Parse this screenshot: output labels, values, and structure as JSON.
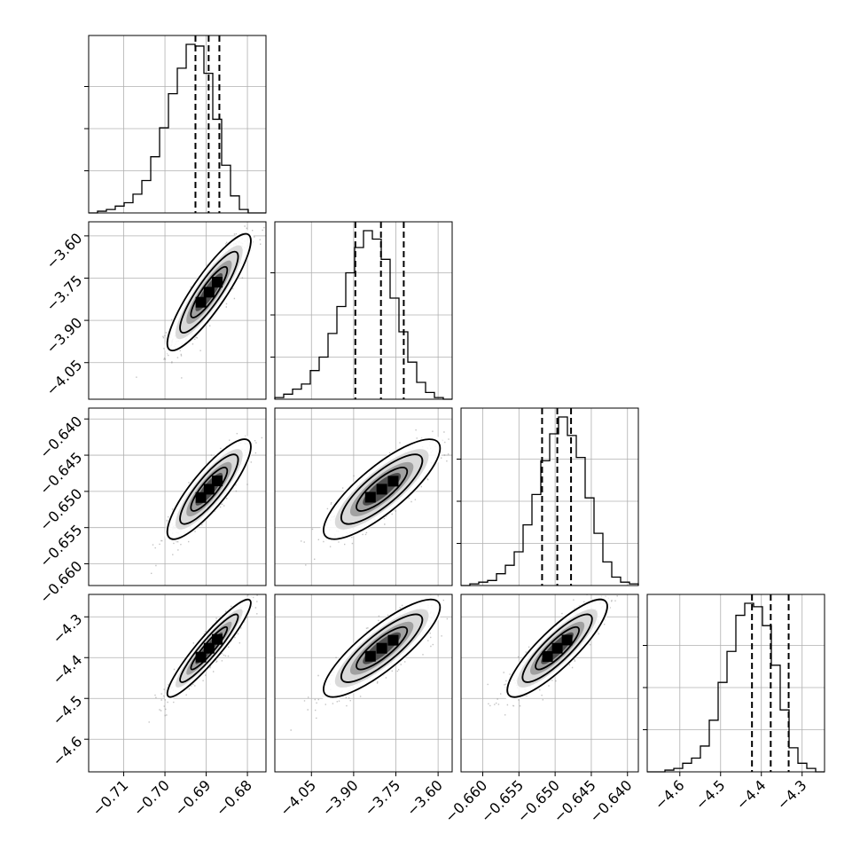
{
  "chart_data": {
    "type": "corner",
    "grid": true,
    "quantile_lines": "dashed",
    "variables": [
      {
        "range": [
          -0.7185,
          -0.6755
        ],
        "ticks": [
          -0.71,
          -0.7,
          -0.69,
          -0.68
        ],
        "tick_labels": [
          "−0.71",
          "−0.70",
          "−0.69",
          "−0.68"
        ],
        "quantiles": [
          -0.6926,
          -0.6894,
          -0.6868
        ],
        "hist": [
          0,
          1,
          2,
          4,
          6,
          11,
          19,
          33,
          50,
          70,
          85,
          99,
          98,
          82,
          55,
          28,
          10,
          2,
          0,
          0
        ]
      },
      {
        "range": [
          -4.18,
          -3.55
        ],
        "ticks": [
          -4.05,
          -3.9,
          -3.75,
          -3.6
        ],
        "tick_labels": [
          "−4.05",
          "−3.90",
          "−3.75",
          "−3.60"
        ],
        "quantiles": [
          -3.894,
          -3.803,
          -3.722
        ],
        "hist": [
          1,
          3,
          6,
          9,
          17,
          25,
          39,
          55,
          75,
          90,
          100,
          95,
          83,
          60,
          40,
          22,
          10,
          4,
          1,
          0
        ]
      },
      {
        "range": [
          -0.663,
          -0.6385
        ],
        "ticks": [
          -0.66,
          -0.655,
          -0.65,
          -0.645,
          -0.64
        ],
        "tick_labels": [
          "−0.660",
          "−0.655",
          "−0.650",
          "−0.645",
          "−0.640"
        ],
        "quantiles": [
          -0.6518,
          -0.6497,
          -0.6478
        ],
        "hist": [
          0,
          1,
          2,
          3,
          7,
          12,
          20,
          36,
          54,
          74,
          90,
          100,
          89,
          76,
          52,
          31,
          14,
          5,
          2,
          1
        ]
      },
      {
        "range": [
          -4.68,
          -4.245
        ],
        "ticks": [
          -4.6,
          -4.5,
          -4.4,
          -4.3
        ],
        "tick_labels": [
          "−4.6",
          "−4.5",
          "−4.4",
          "−4.3"
        ],
        "quantiles": [
          -4.423,
          -4.377,
          -4.333
        ],
        "hist": [
          0,
          0,
          1,
          2,
          5,
          8,
          15,
          30,
          52,
          70,
          91,
          98,
          96,
          85,
          62,
          36,
          14,
          5,
          2,
          0
        ]
      }
    ],
    "pairs": [
      {
        "x": 0,
        "y": 1,
        "center": [
          -0.6893,
          -3.8
        ],
        "sd": [
          0.0044,
          0.09
        ],
        "rho": 0.88
      },
      {
        "x": 0,
        "y": 2,
        "center": [
          -0.6893,
          -0.6497
        ],
        "sd": [
          0.0044,
          0.003
        ],
        "rho": 0.85
      },
      {
        "x": 1,
        "y": 2,
        "center": [
          -3.8,
          -0.6497
        ],
        "sd": [
          0.09,
          0.003
        ],
        "rho": 0.82
      },
      {
        "x": 0,
        "y": 3,
        "center": [
          -0.6893,
          -4.377
        ],
        "sd": [
          0.0044,
          0.052
        ],
        "rho": 0.93
      },
      {
        "x": 1,
        "y": 3,
        "center": [
          -3.8,
          -4.377
        ],
        "sd": [
          0.09,
          0.052
        ],
        "rho": 0.84
      },
      {
        "x": 2,
        "y": 3,
        "center": [
          -0.6497,
          -4.377
        ],
        "sd": [
          0.003,
          0.052
        ],
        "rho": 0.86
      }
    ]
  }
}
